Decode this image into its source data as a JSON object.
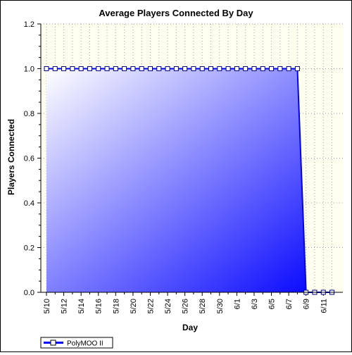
{
  "chart_data": {
    "type": "area",
    "title": "Average Players Connected By Day",
    "xlabel": "Day",
    "ylabel": "Players Connected",
    "ylim": [
      0,
      1.2
    ],
    "yticks": [
      "0.0",
      "0.2",
      "0.4",
      "0.6",
      "0.8",
      "1.0",
      "1.2"
    ],
    "grid": true,
    "legend_position": "bottom-left",
    "x": [
      "5/10",
      "5/11",
      "5/12",
      "5/13",
      "5/14",
      "5/15",
      "5/16",
      "5/17",
      "5/18",
      "5/19",
      "5/20",
      "5/21",
      "5/22",
      "5/23",
      "5/24",
      "5/25",
      "5/26",
      "5/27",
      "5/28",
      "5/29",
      "5/30",
      "5/31",
      "6/1",
      "6/2",
      "6/3",
      "6/4",
      "6/5",
      "6/6",
      "6/7",
      "6/8",
      "6/9",
      "6/10",
      "6/11",
      "6/12"
    ],
    "xtick_labels": [
      "5/10",
      "5/12",
      "5/14",
      "5/16",
      "5/18",
      "5/20",
      "5/22",
      "5/24",
      "5/26",
      "5/28",
      "5/30",
      "6/1",
      "6/3",
      "6/5",
      "6/7",
      "6/9",
      "6/11"
    ],
    "series": [
      {
        "name": "PolyMOO II",
        "color": "#0000ff",
        "values": [
          1,
          1,
          1,
          1,
          1,
          1,
          1,
          1,
          1,
          1,
          1,
          1,
          1,
          1,
          1,
          1,
          1,
          1,
          1,
          1,
          1,
          1,
          1,
          1,
          1,
          1,
          1,
          1,
          1,
          1,
          0,
          0,
          0,
          0
        ]
      }
    ],
    "colors": {
      "plot_background": "#fffff0",
      "area_light": "#ffffff",
      "area_dark": "#0000ff",
      "grid": "#a0a0a0"
    }
  }
}
